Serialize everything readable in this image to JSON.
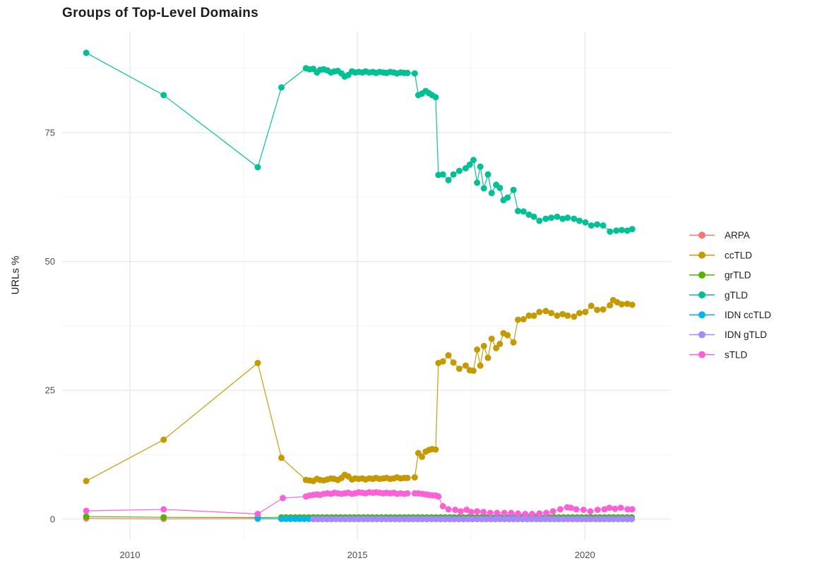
{
  "title": "Groups of Top-Level Domains",
  "y_axis_title": "URLs %",
  "chart_data": {
    "type": "line",
    "title": "Groups of Top-Level Domains",
    "xlabel": "",
    "ylabel": "URLs %",
    "x_ticks": [
      2010,
      2015,
      2020
    ],
    "x_minor_ticks": [
      2012.5,
      2017.5
    ],
    "y_ticks": [
      0,
      25,
      50,
      75
    ],
    "y_minor_ticks": [
      12.5,
      37.5,
      62.5,
      87.5
    ],
    "xlim": [
      2008.51,
      2021.89
    ],
    "ylim": [
      -4,
      94.6
    ],
    "grid": true,
    "legend_position": "right",
    "panel_background": "#ffffff",
    "grid_major_color": "#e6e6e6",
    "grid_minor_color": "#f2f2f2",
    "series": [
      {
        "name": "ARPA",
        "color": "#F8766D",
        "points": [
          [
            2009.04,
            0.15
          ],
          [
            2010.74,
            0.05
          ],
          [
            2012.81,
            0.1
          ]
        ],
        "flat": {
          "from": 2013.33,
          "to": 2021.04,
          "step": 0.1,
          "value": 0.08
        }
      },
      {
        "name": "ccTLD",
        "color": "#C49A00",
        "points": [
          [
            2009.04,
            7.4
          ],
          [
            2010.74,
            15.4
          ],
          [
            2012.81,
            30.3
          ],
          [
            2013.33,
            11.9
          ],
          [
            2013.87,
            7.6
          ],
          [
            2013.95,
            7.5
          ],
          [
            2014.03,
            7.4
          ],
          [
            2014.11,
            7.8
          ],
          [
            2014.18,
            7.6
          ],
          [
            2014.26,
            7.5
          ],
          [
            2014.34,
            7.7
          ],
          [
            2014.42,
            7.9
          ],
          [
            2014.49,
            7.8
          ],
          [
            2014.57,
            7.6
          ],
          [
            2014.65,
            8.0
          ],
          [
            2014.72,
            8.6
          ],
          [
            2014.8,
            8.3
          ],
          [
            2014.88,
            7.7
          ],
          [
            2014.95,
            7.9
          ],
          [
            2015.03,
            7.8
          ],
          [
            2015.11,
            7.9
          ],
          [
            2015.18,
            7.7
          ],
          [
            2015.26,
            7.9
          ],
          [
            2015.34,
            7.8
          ],
          [
            2015.41,
            8.0
          ],
          [
            2015.49,
            7.8
          ],
          [
            2015.57,
            7.9
          ],
          [
            2015.64,
            8.0
          ],
          [
            2015.72,
            7.8
          ],
          [
            2015.8,
            7.9
          ],
          [
            2015.87,
            8.1
          ],
          [
            2015.95,
            7.9
          ],
          [
            2016.03,
            8.0
          ],
          [
            2016.1,
            8.0
          ],
          [
            2016.26,
            8.1
          ],
          [
            2016.34,
            12.8
          ],
          [
            2016.42,
            12.1
          ],
          [
            2016.5,
            13.1
          ],
          [
            2016.57,
            13.4
          ],
          [
            2016.64,
            13.6
          ],
          [
            2016.72,
            13.5
          ],
          [
            2016.78,
            30.3
          ],
          [
            2016.88,
            30.6
          ],
          [
            2017.0,
            31.8
          ],
          [
            2017.11,
            30.4
          ],
          [
            2017.24,
            29.2
          ],
          [
            2017.38,
            29.8
          ],
          [
            2017.47,
            28.9
          ],
          [
            2017.55,
            28.8
          ],
          [
            2017.63,
            32.9
          ],
          [
            2017.7,
            29.8
          ],
          [
            2017.78,
            33.6
          ],
          [
            2017.87,
            31.3
          ],
          [
            2017.95,
            35.0
          ],
          [
            2018.05,
            33.2
          ],
          [
            2018.13,
            34.0
          ],
          [
            2018.21,
            36.1
          ],
          [
            2018.3,
            35.7
          ],
          [
            2018.43,
            34.3
          ],
          [
            2018.53,
            38.7
          ],
          [
            2018.65,
            38.8
          ],
          [
            2018.77,
            39.5
          ],
          [
            2018.88,
            39.5
          ],
          [
            2019.0,
            40.2
          ],
          [
            2019.14,
            40.4
          ],
          [
            2019.26,
            40.0
          ],
          [
            2019.39,
            39.5
          ],
          [
            2019.51,
            39.8
          ],
          [
            2019.62,
            39.5
          ],
          [
            2019.76,
            39.3
          ],
          [
            2019.88,
            40.0
          ],
          [
            2020.01,
            40.2
          ],
          [
            2020.14,
            41.4
          ],
          [
            2020.27,
            40.6
          ],
          [
            2020.4,
            40.7
          ],
          [
            2020.55,
            41.5
          ],
          [
            2020.62,
            42.5
          ],
          [
            2020.71,
            42.1
          ],
          [
            2020.81,
            41.7
          ],
          [
            2020.93,
            41.8
          ],
          [
            2021.04,
            41.6
          ]
        ]
      },
      {
        "name": "grTLD",
        "color": "#53B400",
        "points": [
          [
            2009.04,
            0.5
          ],
          [
            2010.74,
            0.35
          ],
          [
            2012.81,
            0.3
          ]
        ],
        "flat": {
          "from": 2013.33,
          "to": 2021.04,
          "step": 0.1,
          "value": 0.35
        }
      },
      {
        "name": "gTLD",
        "color": "#00C094",
        "points": [
          [
            2009.04,
            90.5
          ],
          [
            2010.74,
            82.3
          ],
          [
            2012.81,
            68.3
          ],
          [
            2013.33,
            83.8
          ],
          [
            2013.87,
            87.5
          ],
          [
            2013.95,
            87.3
          ],
          [
            2014.03,
            87.4
          ],
          [
            2014.11,
            86.7
          ],
          [
            2014.18,
            87.2
          ],
          [
            2014.26,
            87.3
          ],
          [
            2014.34,
            87.1
          ],
          [
            2014.42,
            86.7
          ],
          [
            2014.49,
            86.9
          ],
          [
            2014.57,
            87.0
          ],
          [
            2014.65,
            86.5
          ],
          [
            2014.72,
            85.9
          ],
          [
            2014.8,
            86.2
          ],
          [
            2014.88,
            86.9
          ],
          [
            2014.95,
            86.7
          ],
          [
            2015.03,
            86.8
          ],
          [
            2015.11,
            86.7
          ],
          [
            2015.18,
            86.9
          ],
          [
            2015.26,
            86.7
          ],
          [
            2015.34,
            86.8
          ],
          [
            2015.41,
            86.6
          ],
          [
            2015.49,
            86.8
          ],
          [
            2015.57,
            86.7
          ],
          [
            2015.64,
            86.6
          ],
          [
            2015.72,
            86.8
          ],
          [
            2015.8,
            86.7
          ],
          [
            2015.87,
            86.5
          ],
          [
            2015.95,
            86.7
          ],
          [
            2016.03,
            86.6
          ],
          [
            2016.1,
            86.6
          ],
          [
            2016.26,
            86.5
          ],
          [
            2016.34,
            82.3
          ],
          [
            2016.42,
            82.6
          ],
          [
            2016.5,
            83.1
          ],
          [
            2016.57,
            82.7
          ],
          [
            2016.64,
            82.3
          ],
          [
            2016.72,
            81.9
          ],
          [
            2016.78,
            66.8
          ],
          [
            2016.88,
            66.9
          ],
          [
            2017.0,
            65.8
          ],
          [
            2017.11,
            66.9
          ],
          [
            2017.24,
            67.6
          ],
          [
            2017.38,
            68.1
          ],
          [
            2017.47,
            68.8
          ],
          [
            2017.55,
            69.7
          ],
          [
            2017.63,
            65.3
          ],
          [
            2017.7,
            68.4
          ],
          [
            2017.78,
            64.2
          ],
          [
            2017.87,
            66.9
          ],
          [
            2017.95,
            63.3
          ],
          [
            2018.05,
            64.9
          ],
          [
            2018.13,
            64.3
          ],
          [
            2018.21,
            61.9
          ],
          [
            2018.3,
            62.4
          ],
          [
            2018.43,
            63.9
          ],
          [
            2018.53,
            59.8
          ],
          [
            2018.65,
            59.7
          ],
          [
            2018.77,
            59.1
          ],
          [
            2018.88,
            58.7
          ],
          [
            2019.0,
            57.9
          ],
          [
            2019.14,
            58.3
          ],
          [
            2019.26,
            58.5
          ],
          [
            2019.39,
            58.7
          ],
          [
            2019.51,
            58.3
          ],
          [
            2019.62,
            58.5
          ],
          [
            2019.76,
            58.3
          ],
          [
            2019.88,
            57.9
          ],
          [
            2020.01,
            57.6
          ],
          [
            2020.14,
            57.0
          ],
          [
            2020.27,
            57.2
          ],
          [
            2020.4,
            57.0
          ],
          [
            2020.55,
            55.8
          ],
          [
            2020.69,
            56.0
          ],
          [
            2020.81,
            56.1
          ],
          [
            2020.93,
            56.0
          ],
          [
            2021.04,
            56.3
          ]
        ]
      },
      {
        "name": "IDN ccTLD",
        "color": "#00B6EB",
        "points": [
          [
            2012.81,
            0.1
          ]
        ],
        "flat": {
          "from": 2013.33,
          "to": 2021.04,
          "step": 0.1,
          "value": 0.05
        }
      },
      {
        "name": "IDN gTLD",
        "color": "#A58AFF",
        "points": [],
        "flat": {
          "from": 2014.03,
          "to": 2021.04,
          "step": 0.1,
          "value": 0.0
        }
      },
      {
        "name": "sTLD",
        "color": "#FB61D7",
        "points": [
          [
            2009.04,
            1.6
          ],
          [
            2010.74,
            1.9
          ],
          [
            2012.81,
            1.0
          ],
          [
            2013.36,
            4.1
          ],
          [
            2013.87,
            4.4
          ],
          [
            2013.95,
            4.6
          ],
          [
            2014.03,
            4.7
          ],
          [
            2014.11,
            4.8
          ],
          [
            2014.18,
            4.7
          ],
          [
            2014.26,
            4.9
          ],
          [
            2014.34,
            5.0
          ],
          [
            2014.42,
            4.9
          ],
          [
            2014.49,
            5.1
          ],
          [
            2014.57,
            5.0
          ],
          [
            2014.65,
            4.9
          ],
          [
            2014.72,
            5.0
          ],
          [
            2014.8,
            5.1
          ],
          [
            2014.88,
            4.9
          ],
          [
            2014.95,
            5.0
          ],
          [
            2015.03,
            5.2
          ],
          [
            2015.11,
            5.1
          ],
          [
            2015.18,
            5.0
          ],
          [
            2015.26,
            5.2
          ],
          [
            2015.34,
            5.1
          ],
          [
            2015.41,
            5.2
          ],
          [
            2015.49,
            5.1
          ],
          [
            2015.57,
            5.0
          ],
          [
            2015.64,
            5.1
          ],
          [
            2015.72,
            5.0
          ],
          [
            2015.8,
            5.1
          ],
          [
            2015.87,
            4.9
          ],
          [
            2015.95,
            5.0
          ],
          [
            2016.03,
            4.9
          ],
          [
            2016.1,
            5.0
          ],
          [
            2016.26,
            5.0
          ],
          [
            2016.34,
            5.0
          ],
          [
            2016.42,
            4.9
          ],
          [
            2016.5,
            4.8
          ],
          [
            2016.57,
            4.7
          ],
          [
            2016.64,
            4.6
          ],
          [
            2016.72,
            4.6
          ],
          [
            2016.78,
            4.4
          ],
          [
            2016.88,
            2.5
          ],
          [
            2017.0,
            1.9
          ],
          [
            2017.15,
            1.8
          ],
          [
            2017.27,
            1.5
          ],
          [
            2017.4,
            1.8
          ],
          [
            2017.5,
            1.4
          ],
          [
            2017.63,
            1.5
          ],
          [
            2017.77,
            1.4
          ],
          [
            2017.92,
            1.2
          ],
          [
            2018.07,
            1.2
          ],
          [
            2018.23,
            1.2
          ],
          [
            2018.38,
            1.2
          ],
          [
            2018.53,
            1.1
          ],
          [
            2018.69,
            1.0
          ],
          [
            2018.84,
            1.0
          ],
          [
            2019.0,
            1.1
          ],
          [
            2019.15,
            1.2
          ],
          [
            2019.3,
            1.5
          ],
          [
            2019.46,
            1.9
          ],
          [
            2019.61,
            2.3
          ],
          [
            2019.69,
            2.2
          ],
          [
            2019.81,
            1.9
          ],
          [
            2019.97,
            1.8
          ],
          [
            2020.12,
            1.5
          ],
          [
            2020.28,
            1.8
          ],
          [
            2020.43,
            1.9
          ],
          [
            2020.54,
            2.2
          ],
          [
            2020.66,
            2.0
          ],
          [
            2020.79,
            2.2
          ],
          [
            2020.94,
            1.9
          ],
          [
            2021.04,
            1.9
          ]
        ]
      }
    ]
  }
}
